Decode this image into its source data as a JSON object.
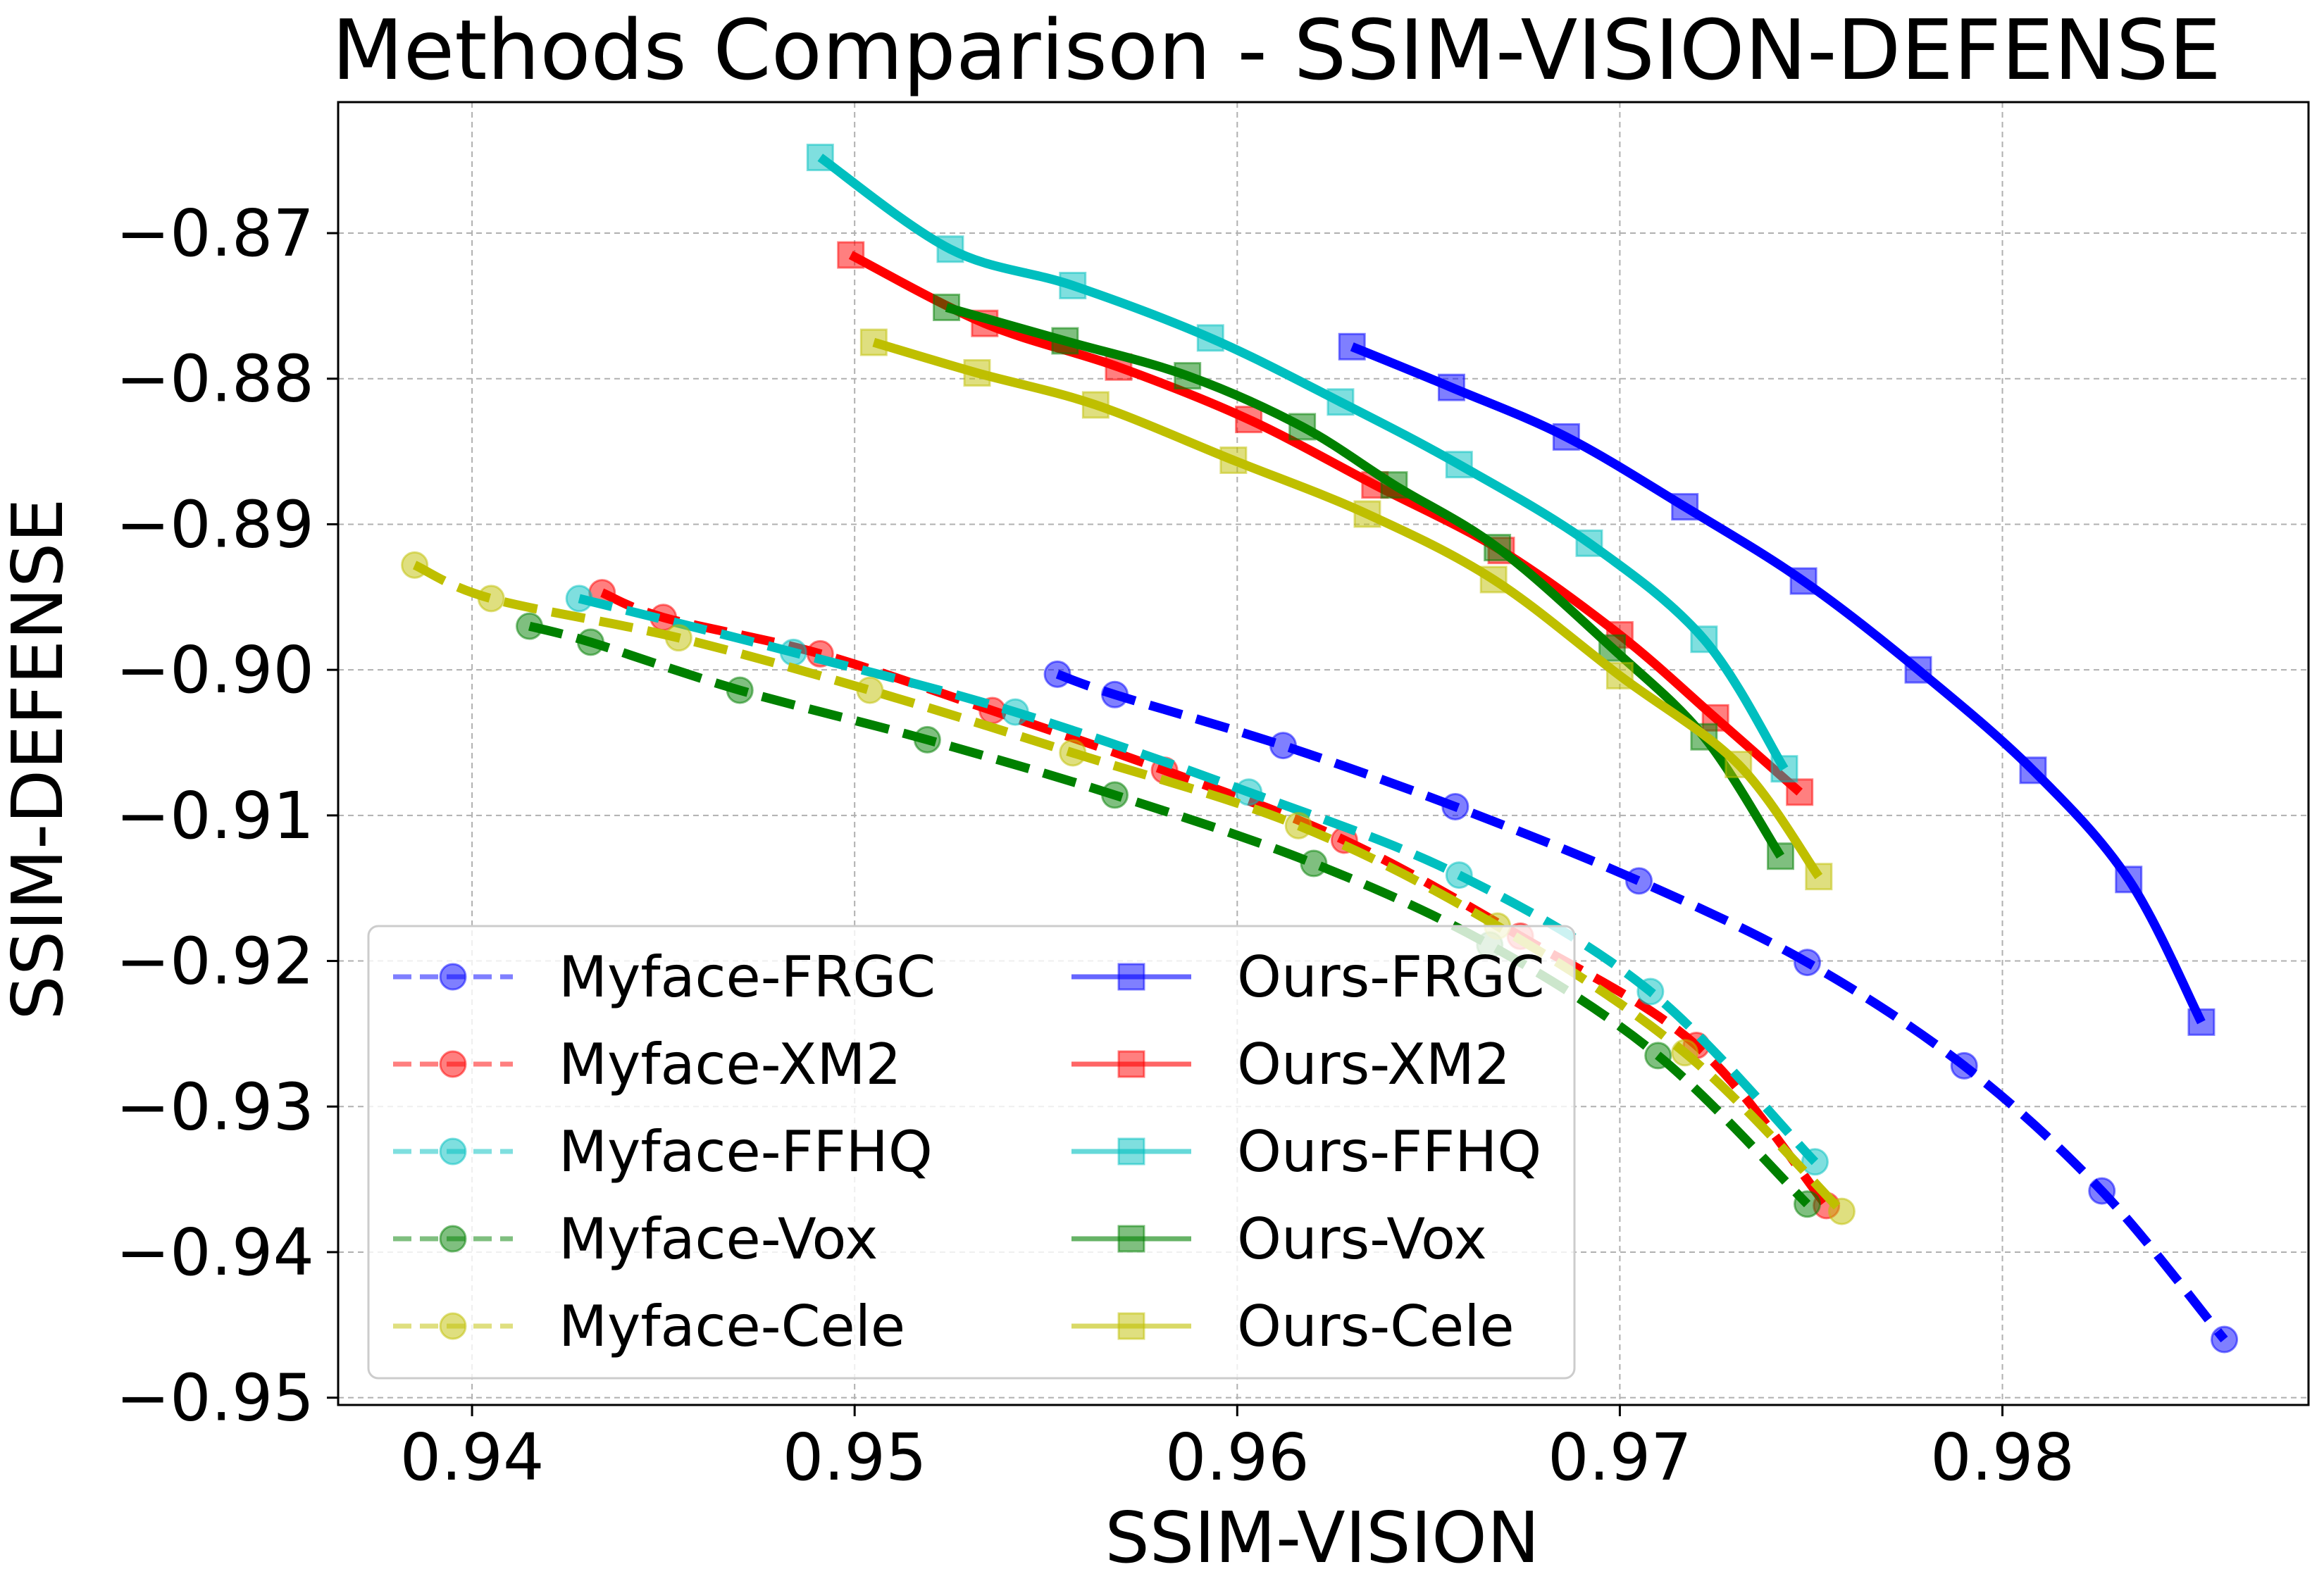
{
  "chart_data": {
    "type": "line",
    "title": "Methods Comparison - SSIM-VISION-DEFENSE",
    "xlabel": "SSIM-VISION",
    "ylabel": "SSIM-DEFENSE",
    "xlim": [
      0.9365,
      0.988
    ],
    "ylim": [
      -0.9505,
      -0.861
    ],
    "xticks": [
      0.94,
      0.95,
      0.96,
      0.97,
      0.98
    ],
    "yticks": [
      -0.87,
      -0.88,
      -0.89,
      -0.9,
      -0.91,
      -0.92,
      -0.93,
      -0.94,
      -0.95
    ],
    "xtick_labels": [
      "0.94",
      "0.95",
      "0.96",
      "0.97",
      "0.98"
    ],
    "ytick_labels": [
      "−0.87",
      "−0.88",
      "−0.89",
      "−0.90",
      "−0.91",
      "−0.92",
      "−0.93",
      "−0.94",
      "−0.95"
    ],
    "grid": true,
    "legend_position": "lower-left",
    "legend_columns": 2,
    "series": [
      {
        "name": "Myface-FRGC",
        "color": "#0000ff",
        "style": "dashed",
        "marker": "circle",
        "x": [
          0.9553,
          0.9568,
          0.9612,
          0.9657,
          0.9705,
          0.9749,
          0.979,
          0.9826,
          0.9858
        ],
        "y": [
          -0.9003,
          -0.9017,
          -0.9052,
          -0.9094,
          -0.9145,
          -0.9201,
          -0.9272,
          -0.9358,
          -0.946
        ]
      },
      {
        "name": "Myface-XM2",
        "color": "#ff0000",
        "style": "dashed",
        "marker": "circle",
        "x": [
          0.9434,
          0.945,
          0.9491,
          0.9536,
          0.9581,
          0.9628,
          0.9674,
          0.972,
          0.9754
        ],
        "y": [
          -0.8947,
          -0.8964,
          -0.8989,
          -0.9028,
          -0.9069,
          -0.9117,
          -0.9183,
          -0.9258,
          -0.9368
        ]
      },
      {
        "name": "Myface-FFHQ",
        "color": "#00bfbf",
        "style": "dashed",
        "marker": "circle",
        "x": [
          0.9428,
          0.9484,
          0.9542,
          0.9603,
          0.9658,
          0.9708,
          0.9751
        ],
        "y": [
          -0.8951,
          -0.8988,
          -0.9029,
          -0.9084,
          -0.9141,
          -0.9221,
          -0.9338
        ]
      },
      {
        "name": "Myface-Vox",
        "color": "#008000",
        "style": "dashed",
        "marker": "circle",
        "x": [
          0.9415,
          0.9431,
          0.947,
          0.9519,
          0.9568,
          0.962,
          0.9666,
          0.971,
          0.9749
        ],
        "y": [
          -0.897,
          -0.8981,
          -0.9014,
          -0.9048,
          -0.9086,
          -0.9133,
          -0.9189,
          -0.9265,
          -0.9367
        ]
      },
      {
        "name": "Myface-Cele",
        "color": "#bfbf00",
        "style": "dashed",
        "marker": "circle",
        "x": [
          0.9385,
          0.9405,
          0.9454,
          0.9504,
          0.9557,
          0.9616,
          0.9668,
          0.9717,
          0.9758
        ],
        "y": [
          -0.8928,
          -0.8951,
          -0.8978,
          -0.9014,
          -0.9057,
          -0.9107,
          -0.9176,
          -0.9263,
          -0.9372
        ]
      },
      {
        "name": "Ours-FRGC",
        "color": "#0000ff",
        "style": "solid",
        "marker": "square",
        "x": [
          0.963,
          0.9656,
          0.9686,
          0.9717,
          0.9748,
          0.9778,
          0.9808,
          0.9833,
          0.9852
        ],
        "y": [
          -0.8778,
          -0.8806,
          -0.884,
          -0.8888,
          -0.8939,
          -0.9,
          -0.9069,
          -0.9144,
          -0.9242
        ]
      },
      {
        "name": "Ours-XM2",
        "color": "#ff0000",
        "style": "solid",
        "marker": "square",
        "x": [
          0.9499,
          0.9534,
          0.9569,
          0.9603,
          0.9636,
          0.9669,
          0.97,
          0.9725,
          0.9747
        ],
        "y": [
          -0.8715,
          -0.8762,
          -0.8792,
          -0.8828,
          -0.8873,
          -0.8918,
          -0.8976,
          -0.9033,
          -0.9084
        ]
      },
      {
        "name": "Ours-FFHQ",
        "color": "#00bfbf",
        "style": "solid",
        "marker": "square",
        "x": [
          0.9491,
          0.9525,
          0.9557,
          0.9593,
          0.9627,
          0.9658,
          0.9692,
          0.9722,
          0.9743
        ],
        "y": [
          -0.8648,
          -0.8711,
          -0.8736,
          -0.8772,
          -0.8816,
          -0.8859,
          -0.8913,
          -0.8979,
          -0.9068
        ]
      },
      {
        "name": "Ours-Vox",
        "color": "#008000",
        "style": "solid",
        "marker": "square",
        "x": [
          0.9524,
          0.9555,
          0.9587,
          0.9617,
          0.9641,
          0.9668,
          0.9698,
          0.9722,
          0.9742
        ],
        "y": [
          -0.8751,
          -0.8774,
          -0.8798,
          -0.8833,
          -0.8873,
          -0.8916,
          -0.8985,
          -0.9046,
          -0.9128
        ]
      },
      {
        "name": "Ours-Cele",
        "color": "#bfbf00",
        "style": "solid",
        "marker": "square",
        "x": [
          0.9505,
          0.9532,
          0.9563,
          0.9599,
          0.9634,
          0.9667,
          0.97,
          0.9731,
          0.9752
        ],
        "y": [
          -0.8775,
          -0.8796,
          -0.8818,
          -0.8856,
          -0.8893,
          -0.8938,
          -0.9004,
          -0.9065,
          -0.9142
        ]
      }
    ]
  }
}
